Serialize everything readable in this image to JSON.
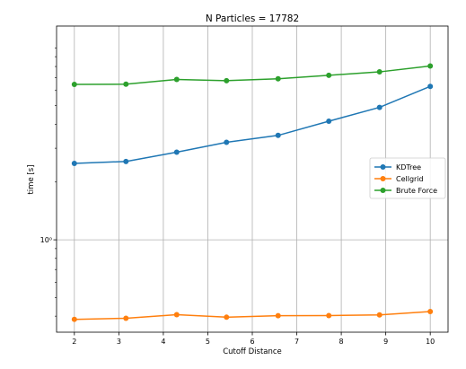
{
  "chart_data": {
    "type": "line",
    "title": "N Particles = 17782",
    "xlabel": "Cutoff Distance",
    "ylabel": "time [s]",
    "yscale": "log",
    "xlim": [
      1.6,
      10.4
    ],
    "ylim": [
      0.33,
      13.0
    ],
    "grid": "vertical and horizontal",
    "legend_position": "center-right",
    "x_ticks": [
      2,
      3,
      4,
      5,
      6,
      7,
      8,
      9,
      10
    ],
    "x_tick_labels": [
      "2",
      "3",
      "4",
      "5",
      "6",
      "7",
      "8",
      "9",
      "10"
    ],
    "y_ticks": [
      1.0
    ],
    "y_tick_labels": [
      "10⁰"
    ],
    "x": [
      2.0,
      3.16,
      4.3,
      5.42,
      6.58,
      7.72,
      8.86,
      10.0
    ],
    "series": [
      {
        "name": "KDTree",
        "color": "#1f77b4",
        "values": [
          2.5,
          2.56,
          2.86,
          3.22,
          3.5,
          4.15,
          4.9,
          6.3
        ]
      },
      {
        "name": "Cellgrid",
        "color": "#ff7f0e",
        "values": [
          0.385,
          0.39,
          0.407,
          0.395,
          0.402,
          0.403,
          0.406,
          0.423
        ]
      },
      {
        "name": "Brute Force",
        "color": "#2ca02c",
        "values": [
          6.45,
          6.47,
          6.85,
          6.75,
          6.9,
          7.2,
          7.5,
          8.05
        ]
      }
    ]
  }
}
